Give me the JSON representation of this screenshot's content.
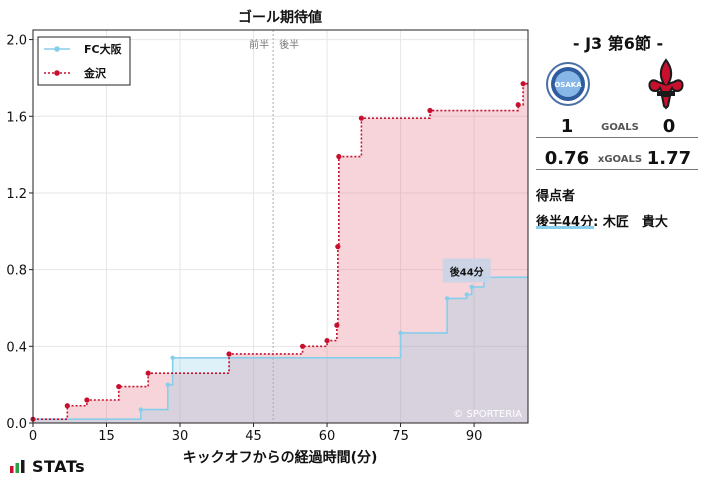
{
  "chart_data": {
    "type": "line",
    "title": "ゴール期待値",
    "xlabel": "キックオフからの経過時間(分)",
    "ylabel": "",
    "xlim": [
      0,
      101
    ],
    "ylim": [
      0,
      2.05
    ],
    "xticks": [
      "0",
      "15",
      "30",
      "45",
      "60",
      "75",
      "90"
    ],
    "yticks": [
      "0.0",
      "0.4",
      "0.8",
      "1.2",
      "1.6",
      "2.0"
    ],
    "halftime_x": 49,
    "halftime_labels": [
      "前半",
      "後半"
    ],
    "grid": true,
    "legend_position": "top-left",
    "watermark": "© SPORTERIA",
    "series": [
      {
        "name": "FC大阪",
        "color": "#87ceeb",
        "steps": [
          [
            0,
            0.02
          ],
          [
            22,
            0.07
          ],
          [
            27.5,
            0.2
          ],
          [
            28.5,
            0.34
          ],
          [
            75,
            0.47
          ],
          [
            84.5,
            0.65
          ],
          [
            88.5,
            0.67
          ],
          [
            89.5,
            0.71
          ],
          [
            92,
            0.76
          ],
          [
            101,
            0.76
          ]
        ]
      },
      {
        "name": "金沢",
        "color": "#c8102e",
        "steps": [
          [
            0,
            0.02
          ],
          [
            7,
            0.09
          ],
          [
            11,
            0.12
          ],
          [
            17.5,
            0.19
          ],
          [
            23.5,
            0.26
          ],
          [
            40,
            0.36
          ],
          [
            55,
            0.4
          ],
          [
            60,
            0.43
          ],
          [
            62,
            0.51
          ],
          [
            62.2,
            0.92
          ],
          [
            62.4,
            1.39
          ],
          [
            67,
            1.59
          ],
          [
            81,
            1.63
          ],
          [
            99,
            1.66
          ],
          [
            100,
            1.77
          ],
          [
            101,
            1.77
          ]
        ]
      }
    ],
    "annotation": {
      "text": "後44分",
      "x": 88.5,
      "y": 0.79
    }
  },
  "match": {
    "title": "- J3 第6節 -",
    "home_score": "1",
    "away_score": "0",
    "goals_label": "GOALS",
    "home_xg": "0.76",
    "away_xg": "1.77",
    "xg_label": "xGOALS",
    "home_crest_text": "OSAKA",
    "away_crest_icon": "fleur-de-lis-icon"
  },
  "scorers": {
    "heading": "得点者",
    "items": [
      "後半44分: 木匠　貴大"
    ]
  },
  "branding": {
    "logo_text": "STATs"
  }
}
